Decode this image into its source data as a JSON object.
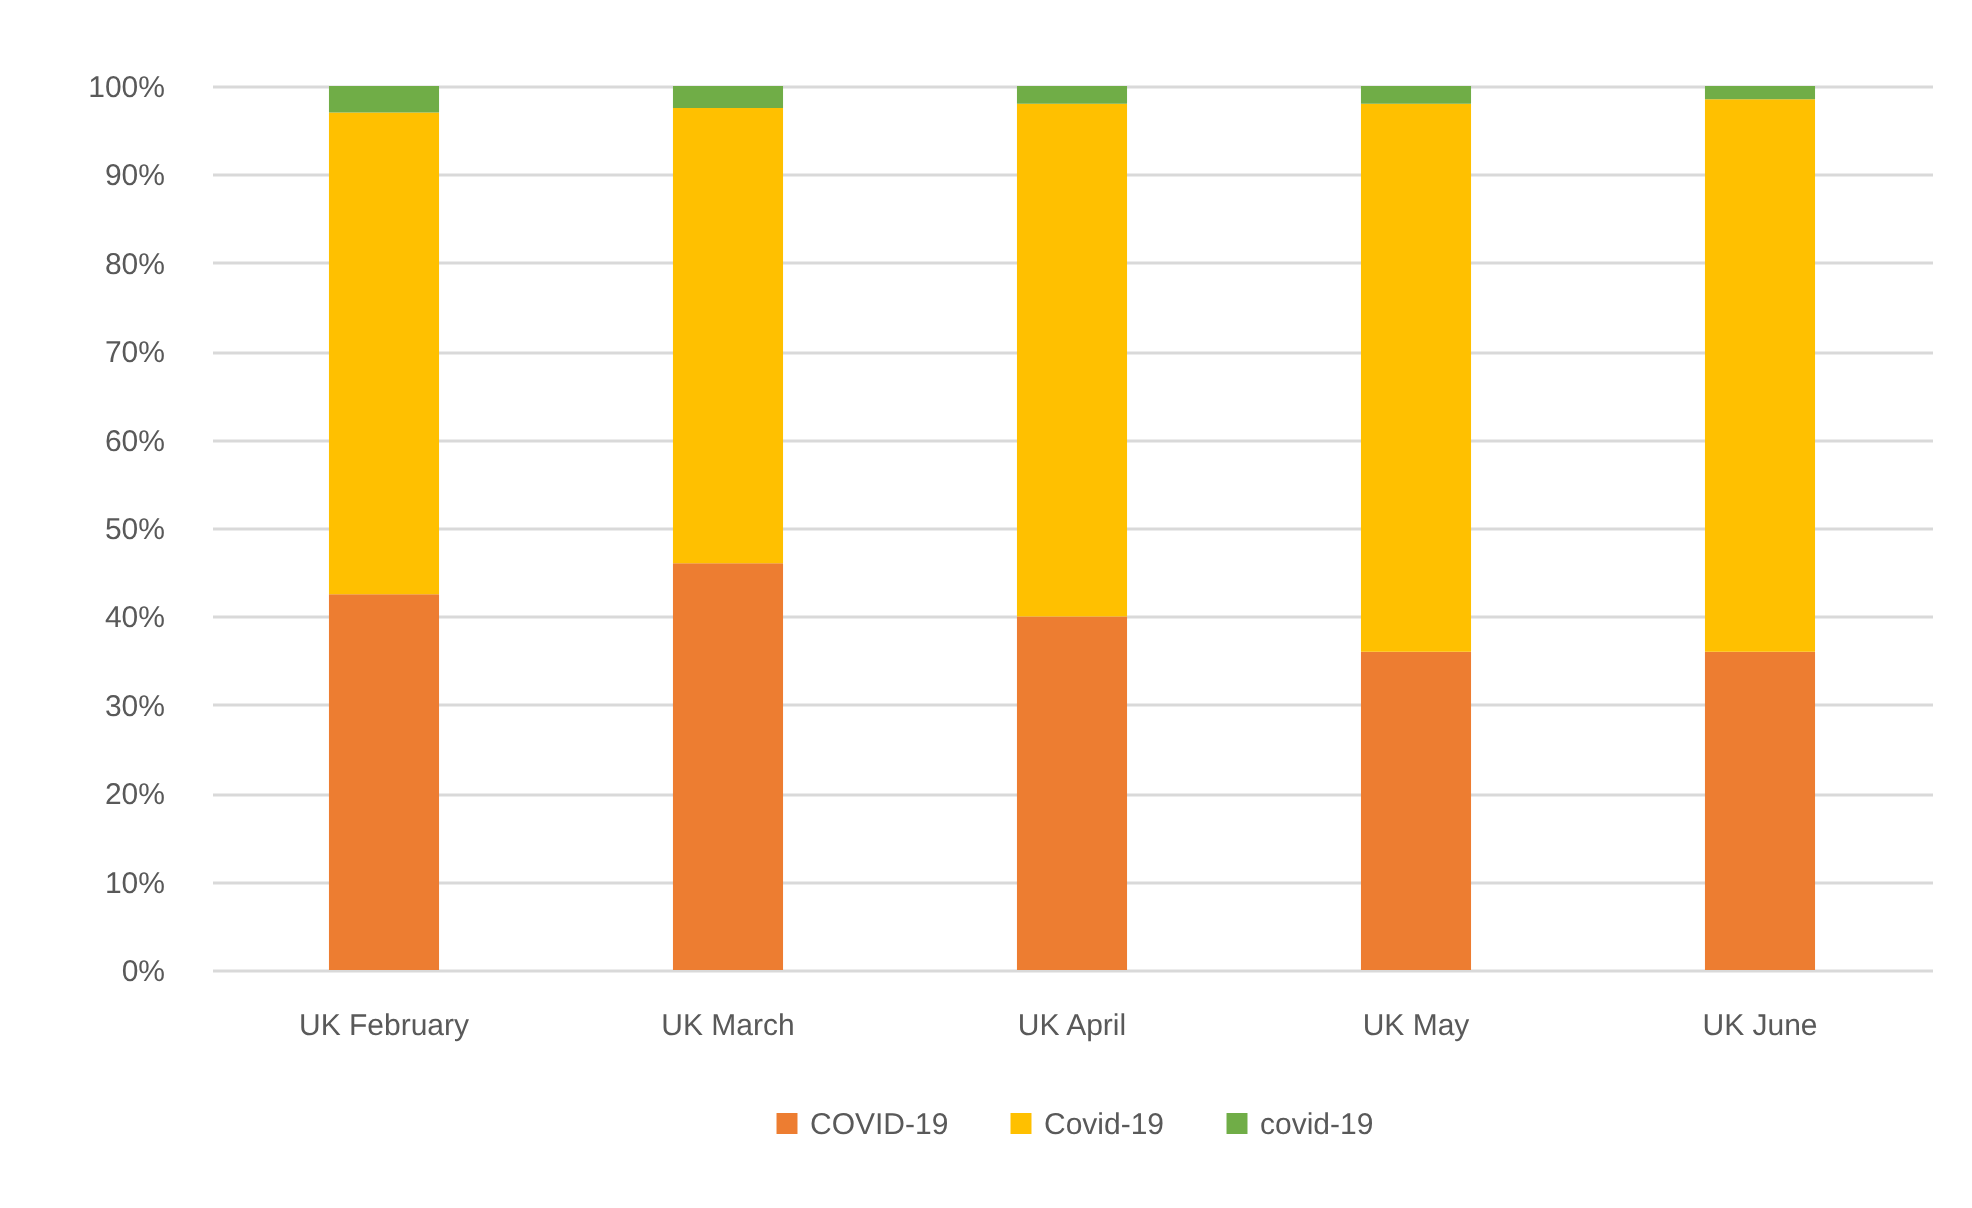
{
  "chart_data": {
    "type": "bar",
    "stacked": true,
    "categories": [
      "UK February",
      "UK March",
      "UK April",
      "UK May",
      "UK June"
    ],
    "series": [
      {
        "name": "COVID-19",
        "color": "#ed7d31",
        "values": [
          42.5,
          46,
          40,
          36,
          36
        ]
      },
      {
        "name": "Covid-19",
        "color": "#ffc000",
        "values": [
          54.5,
          51.5,
          58,
          62,
          62.5
        ]
      },
      {
        "name": "covid-19",
        "color": "#70ad47",
        "values": [
          3,
          2.5,
          2,
          2,
          1.5
        ]
      }
    ],
    "ylim": [
      0,
      100
    ],
    "yticks": [
      {
        "value": 0,
        "label": "0%"
      },
      {
        "value": 10,
        "label": "10%"
      },
      {
        "value": 20,
        "label": "20%"
      },
      {
        "value": 30,
        "label": "30%"
      },
      {
        "value": 40,
        "label": "40%"
      },
      {
        "value": 50,
        "label": "50%"
      },
      {
        "value": 60,
        "label": "60%"
      },
      {
        "value": 70,
        "label": "70%"
      },
      {
        "value": 80,
        "label": "80%"
      },
      {
        "value": 90,
        "label": "90%"
      },
      {
        "value": 100,
        "label": "100%"
      }
    ],
    "grid": "y",
    "legend": "bottom"
  }
}
